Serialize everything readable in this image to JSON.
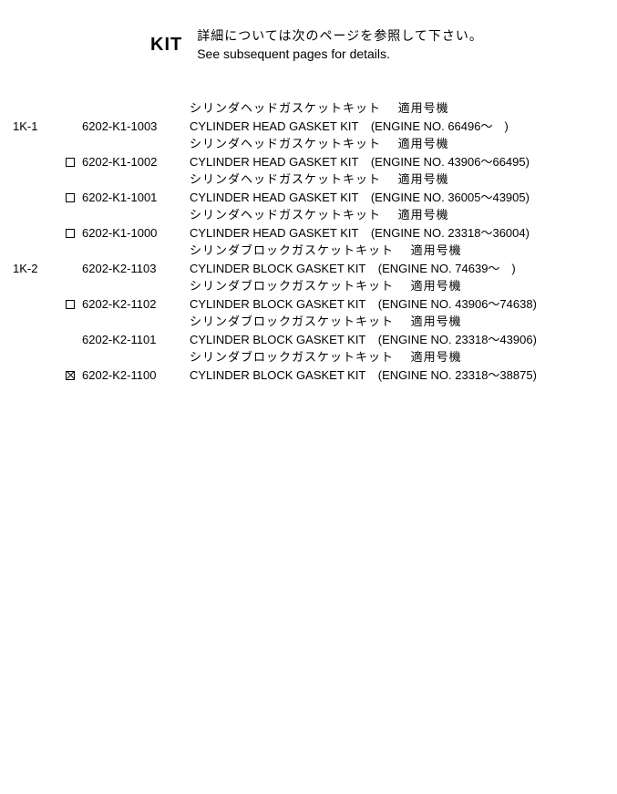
{
  "header": {
    "kit_label": "KIT",
    "jp": "詳細については次のページを参照して下さい。",
    "en": "See subsequent pages for details."
  },
  "entries": [
    {
      "id": "1K-1",
      "mark": "none",
      "part": "6202-K1-1003",
      "jp_desc": "シリンダヘッドガスケットキット",
      "jp_app": "適用号機",
      "en_desc": "CYLINDER HEAD GASKET KIT",
      "engine": "(ENGINE NO. 66496～　)"
    },
    {
      "id": "",
      "mark": "box",
      "part": "6202-K1-1002",
      "jp_desc": "シリンダヘッドガスケットキット",
      "jp_app": "適用号機",
      "en_desc": "CYLINDER HEAD GASKET KIT",
      "engine": "(ENGINE NO. 43906～66495)"
    },
    {
      "id": "",
      "mark": "box",
      "part": "6202-K1-1001",
      "jp_desc": "シリンダヘッドガスケットキット",
      "jp_app": "適用号機",
      "en_desc": "CYLINDER HEAD GASKET KIT",
      "engine": "(ENGINE NO. 36005～43905)"
    },
    {
      "id": "",
      "mark": "box",
      "part": "6202-K1-1000",
      "jp_desc": "シリンダヘッドガスケットキット",
      "jp_app": "適用号機",
      "en_desc": "CYLINDER HEAD GASKET KIT",
      "engine": "(ENGINE NO. 23318～36004)"
    },
    {
      "id": "1K-2",
      "mark": "none",
      "part": "6202-K2-1103",
      "jp_desc": "シリンダブロックガスケットキット",
      "jp_app": "適用号機",
      "en_desc": "CYLINDER BLOCK GASKET KIT",
      "engine": "(ENGINE NO. 74639～　)"
    },
    {
      "id": "",
      "mark": "box",
      "part": "6202-K2-1102",
      "jp_desc": "シリンダブロックガスケットキット",
      "jp_app": "適用号機",
      "en_desc": "CYLINDER BLOCK GASKET KIT",
      "engine": "(ENGINE NO. 43906～74638)"
    },
    {
      "id": "",
      "mark": "none",
      "part": "6202-K2-1101",
      "jp_desc": "シリンダブロックガスケットキット",
      "jp_app": "適用号機",
      "en_desc": "CYLINDER BLOCK GASKET KIT",
      "engine": "(ENGINE NO. 23318～43906)"
    },
    {
      "id": "",
      "mark": "xbox",
      "part": "6202-K2-1100",
      "jp_desc": "シリンダブロックガスケットキット",
      "jp_app": "適用号機",
      "en_desc": "CYLINDER BLOCK GASKET KIT",
      "engine": "(ENGINE NO. 23318～38875)"
    }
  ]
}
